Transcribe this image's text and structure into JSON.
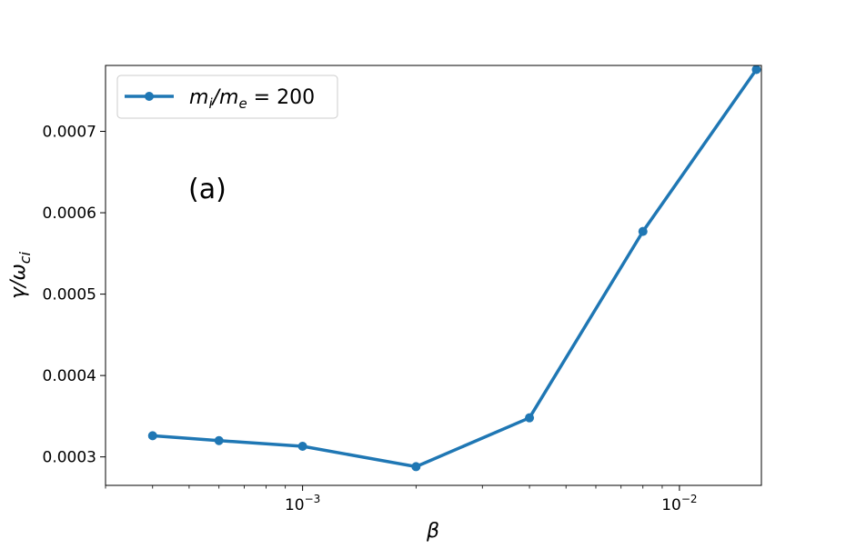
{
  "chart_data": {
    "type": "line",
    "xscale": "log",
    "xlim": [
      0.0003,
      0.0165
    ],
    "ylim": [
      0.000265,
      0.000781
    ],
    "xlabel": "β",
    "ylabel": "γ/ω",
    "ylabel_sub": "ci",
    "annotation": "(a)",
    "legend_position": "top-left",
    "series": [
      {
        "name": "m_i/m_e = 200",
        "color": "#1f77b4",
        "x": [
          0.0004,
          0.0006,
          0.001,
          0.002,
          0.004,
          0.008,
          0.016
        ],
        "y": [
          0.000326,
          0.00032,
          0.000313,
          0.000288,
          0.000348,
          0.000577,
          0.000776
        ]
      }
    ],
    "xticks": [
      {
        "base": "10",
        "exp": "−3",
        "value": 0.001
      },
      {
        "base": "10",
        "exp": "−2",
        "value": 0.01
      }
    ],
    "yticks": [
      "0.0003",
      "0.0004",
      "0.0005",
      "0.0006",
      "0.0007"
    ],
    "ytick_values": [
      0.0003,
      0.0004,
      0.0005,
      0.0006,
      0.0007
    ],
    "grid": false
  }
}
